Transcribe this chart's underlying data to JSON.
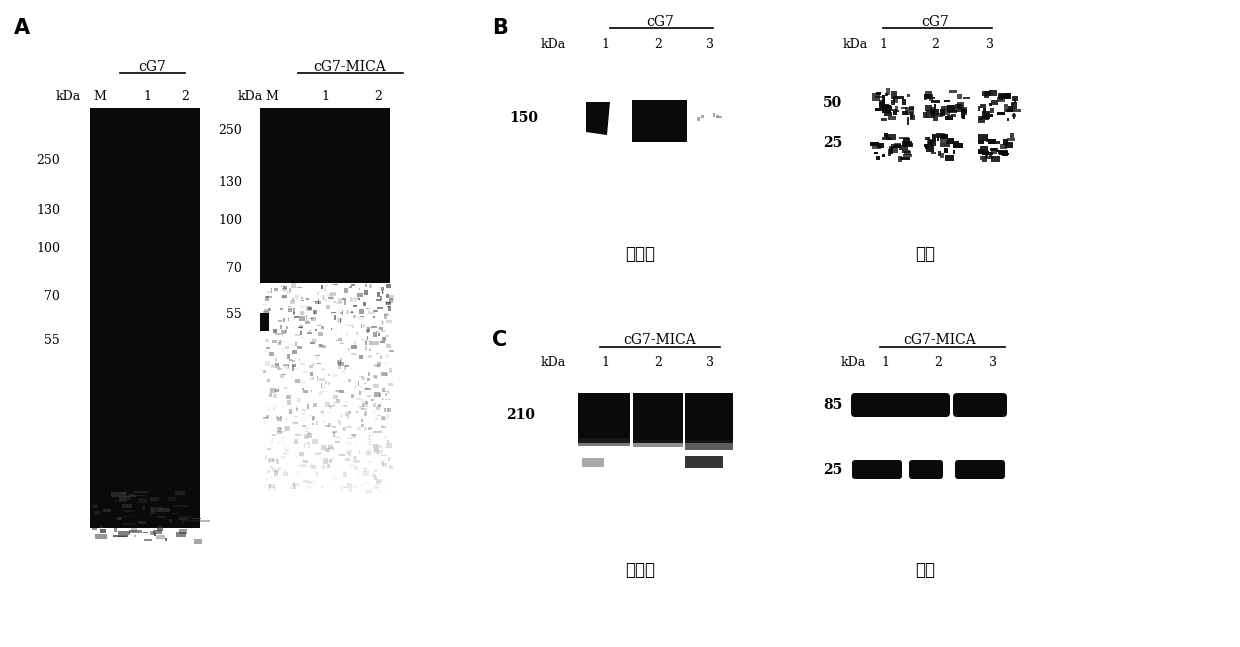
{
  "bg_color": "#ffffff",
  "black": "#111111",
  "white": "#ffffff",
  "A_label": "A",
  "B_label": "B",
  "C_label": "C",
  "panelA_cg7_title": "cG7",
  "panelA_cgmica_title": "cG7-MICA",
  "panelA_kda": "kDa",
  "panelA_M": "M",
  "panelA_left_markers": [
    [
      "250",
      160
    ],
    [
      "130",
      210
    ],
    [
      "100",
      248
    ],
    [
      "70",
      297
    ],
    [
      "55",
      340
    ]
  ],
  "panelA_right_markers": [
    [
      "250",
      130
    ],
    [
      "130",
      183
    ],
    [
      "100",
      220
    ],
    [
      "70",
      268
    ],
    [
      "55",
      315
    ]
  ],
  "panelB_left_title": "cG7",
  "panelB_right_title": "cG7",
  "panelB_left_marker": "150",
  "panelB_right_markers": [
    "50",
    "25"
  ],
  "panelB_left_label": "非还原",
  "panelB_right_label": "还原",
  "panelC_left_title": "cG7-MICA",
  "panelC_right_title": "cG7-MICA",
  "panelC_left_marker": "210",
  "panelC_right_markers": [
    "85",
    "25"
  ],
  "panelC_left_label": "非还原",
  "panelC_right_label": "还原"
}
